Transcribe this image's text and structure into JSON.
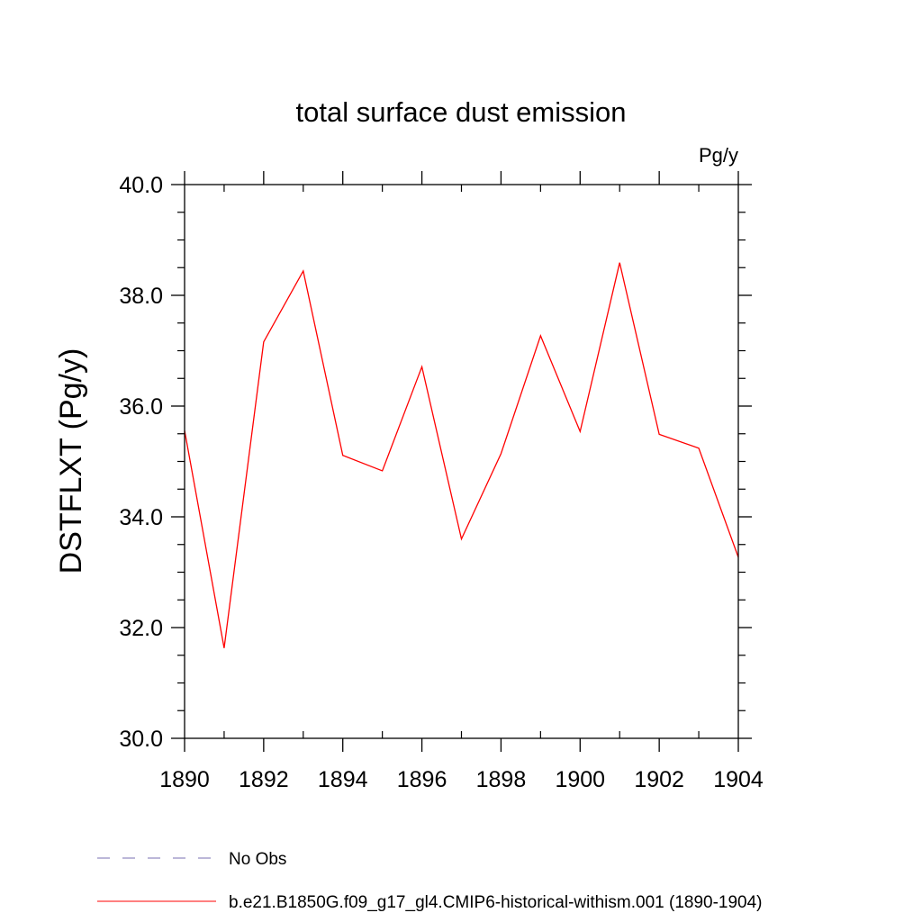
{
  "chart_data": {
    "type": "line",
    "title": "total surface dust emission",
    "units": "Pg/y",
    "ylabel": "DSTFLXT  (Pg/y)",
    "xlabel": "",
    "xlim": [
      1890,
      1904
    ],
    "ylim": [
      30.0,
      40.0
    ],
    "x_ticks": [
      1890,
      1892,
      1894,
      1896,
      1898,
      1900,
      1902,
      1904
    ],
    "x_tick_labels": [
      "1890",
      "1892",
      "1894",
      "1896",
      "1898",
      "1900",
      "1902",
      "1904"
    ],
    "y_ticks": [
      30.0,
      32.0,
      34.0,
      36.0,
      38.0,
      40.0
    ],
    "y_tick_labels": [
      "30.0",
      "32.0",
      "34.0",
      "36.0",
      "38.0",
      "40.0"
    ],
    "x_minor_step": 1,
    "y_minor_step": 0.5,
    "grid": false,
    "legend_position": "bottom",
    "series": [
      {
        "name": "b.e21.B1850G.f09_g17_gl4.CMIP6-historical-withism.001 (1890-1904)",
        "color": "#ff0000",
        "style": "solid",
        "x": [
          1890,
          1891,
          1892,
          1893,
          1894,
          1895,
          1896,
          1897,
          1898,
          1899,
          1900,
          1901,
          1902,
          1903,
          1904
        ],
        "y": [
          35.56,
          31.63,
          37.16,
          38.44,
          35.11,
          34.83,
          36.71,
          33.6,
          35.14,
          37.27,
          35.54,
          38.59,
          35.49,
          35.24,
          33.27
        ]
      }
    ],
    "legend": [
      {
        "label": "No Obs",
        "color": "#7a6fb0",
        "style": "dashed"
      },
      {
        "label": "b.e21.B1850G.f09_g17_gl4.CMIP6-historical-withism.001 (1890-1904)",
        "color": "#ff0000",
        "style": "solid"
      }
    ]
  }
}
